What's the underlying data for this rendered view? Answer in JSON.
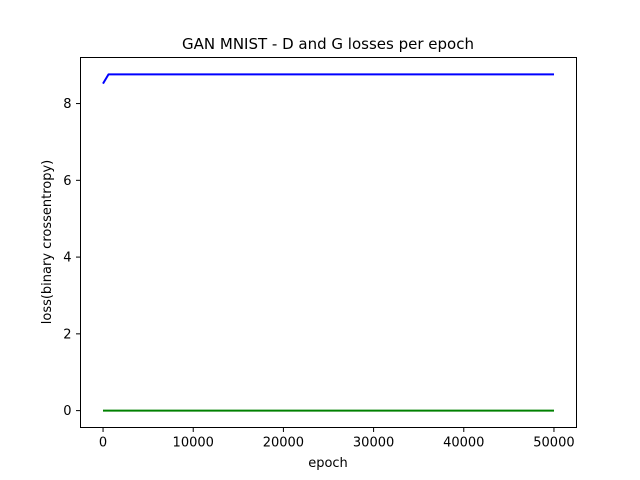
{
  "chart_data": {
    "type": "line",
    "title": "GAN MNIST - D and G losses per epoch",
    "xlabel": "epoch",
    "ylabel": "loss(binary crossentropy)",
    "xlim": [
      -2500,
      52500
    ],
    "ylim": [
      -0.44,
      9.2
    ],
    "xticks": [
      0,
      10000,
      20000,
      30000,
      40000,
      50000
    ],
    "yticks": [
      0,
      2,
      4,
      6,
      8
    ],
    "grid": false,
    "legend": "none",
    "series": [
      {
        "color": "#0000ff",
        "x": [
          0,
          600,
          50000
        ],
        "y": [
          8.52,
          8.76,
          8.76
        ]
      },
      {
        "color": "#008000",
        "x": [
          0,
          50000
        ],
        "y": [
          0.0,
          0.0
        ]
      }
    ]
  }
}
